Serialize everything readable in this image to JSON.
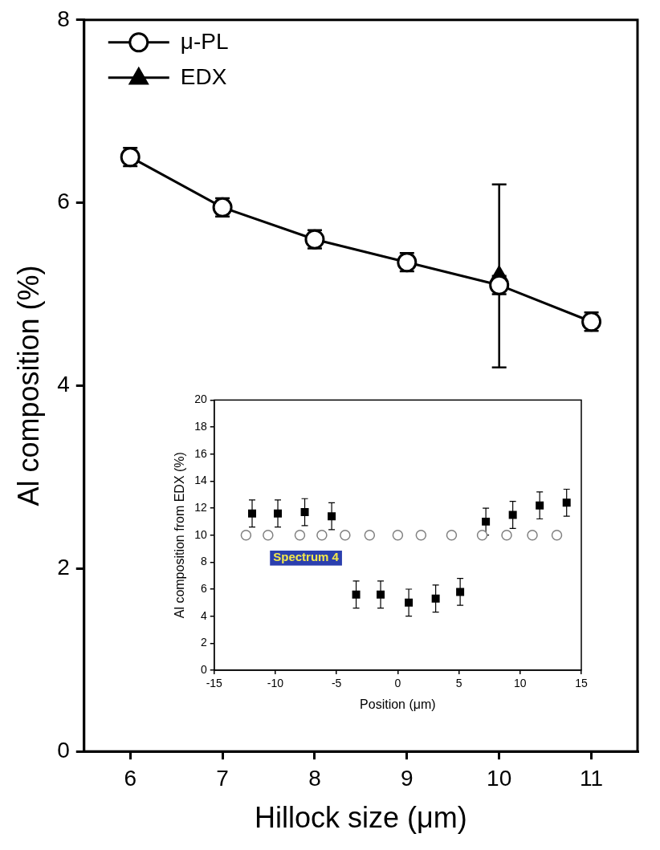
{
  "chart_data": [
    {
      "type": "line",
      "x_label": "Hillock size (μm)",
      "y_label": "Al composition (%)",
      "xlim": [
        5.5,
        11.5
      ],
      "xticks": [
        6,
        7,
        8,
        9,
        10,
        11
      ],
      "ylim": [
        0,
        8
      ],
      "yticks": [
        0,
        2,
        4,
        6,
        8
      ],
      "grid": false,
      "legend": "upper left",
      "series": [
        {
          "name": "μ-PL",
          "color": "#000000",
          "marker": "open_circle",
          "line_style": "solid",
          "x": [
            6,
            7,
            8,
            9,
            10,
            11
          ],
          "values": [
            6.5,
            5.95,
            5.6,
            5.35,
            5.1,
            4.7
          ],
          "errors": [
            0.1,
            0.1,
            0.1,
            0.1,
            0.1,
            0.1
          ]
        },
        {
          "name": "EDX",
          "color": "#000000",
          "marker": "triangle",
          "line_style": "solid",
          "x": [
            10
          ],
          "values": [
            5.2
          ],
          "errors": [
            1.0
          ]
        }
      ]
    },
    {
      "type": "scatter",
      "x_label": "Position (μm)",
      "y_label": "Al composition from EDX (%)",
      "xlim": [
        -15,
        15
      ],
      "xticks": [
        -15,
        -10,
        -5,
        0,
        5,
        10,
        15
      ],
      "ylim": [
        0,
        20
      ],
      "yticks": [
        0,
        2,
        4,
        6,
        8,
        10,
        12,
        14,
        16,
        18,
        20
      ],
      "grid": false,
      "annotations": [
        {
          "text": "Spectrum 4",
          "x": -7.5,
          "y": 8.3
        }
      ],
      "series": [
        {
          "color": "#000000",
          "marker": "square",
          "line_style": "none",
          "x": [
            -11.9,
            -9.8,
            -7.6,
            -5.4,
            -3.4,
            -1.4,
            0.9,
            3.1,
            5.1,
            7.2,
            9.4,
            11.6,
            13.8
          ],
          "values": [
            11.6,
            11.6,
            11.7,
            11.4,
            5.6,
            5.6,
            5.0,
            5.3,
            5.8,
            11.0,
            11.5,
            12.2,
            12.4
          ],
          "errors": [
            1.0,
            1.0,
            1.0,
            1.0,
            1.0,
            1.0,
            1.0,
            1.0,
            1.0,
            1.0,
            1.0,
            1.0,
            1.0
          ]
        },
        {
          "color": "#808080",
          "marker": "open_circle",
          "line_style": "none",
          "x": [
            -12.4,
            -10.6,
            -8.0,
            -6.2,
            -4.3,
            -2.3,
            0.0,
            1.9,
            4.4,
            6.9,
            8.9,
            11.0,
            13.0
          ],
          "values": [
            10,
            10,
            10,
            10,
            10,
            10,
            10,
            10,
            10,
            10,
            10,
            10,
            10
          ]
        }
      ]
    }
  ]
}
